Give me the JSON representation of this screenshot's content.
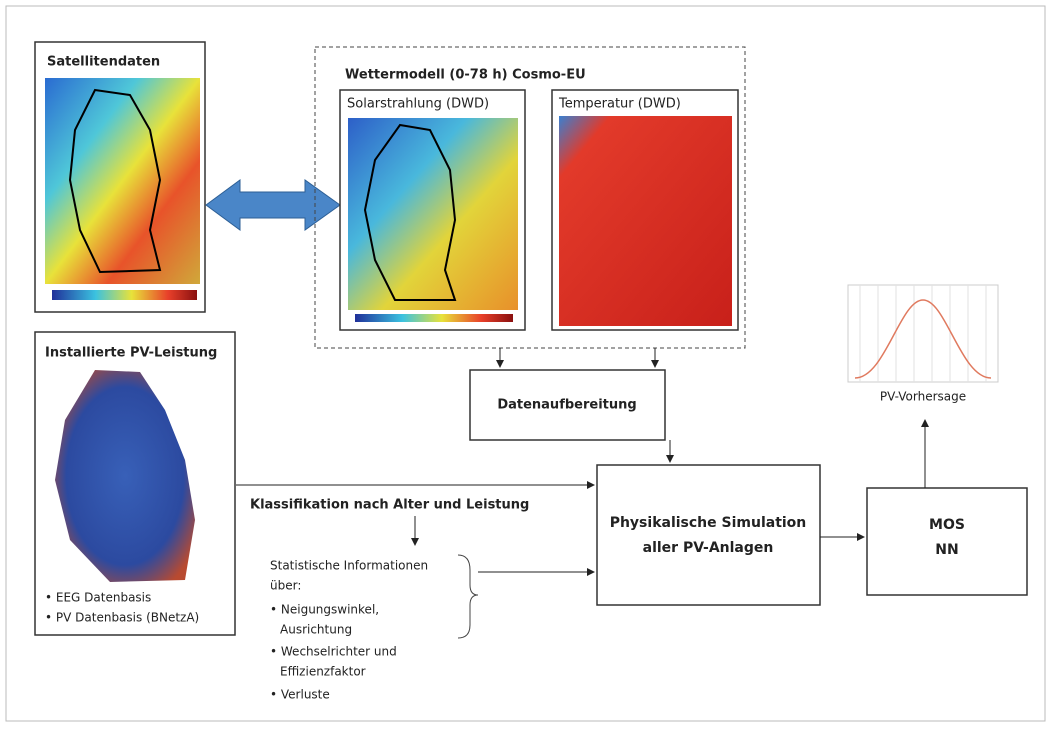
{
  "satellite": {
    "title": "Satellitendaten"
  },
  "weather_model": {
    "title": "Wettermodell (0-78 h) Cosmo-EU",
    "solar": "Solarstrahlung (DWD)",
    "temperature": "Temperatur (DWD)"
  },
  "installed": {
    "title": "Installierte PV-Leistung",
    "bullets": [
      "• EEG Datenbasis",
      "• PV Datenbasis (BNetzA)"
    ]
  },
  "preprocessing": "Datenaufbereitung",
  "classification": "Klassifikation nach Alter und Leistung",
  "statistics": [
    "Statistische Informationen",
    "über:",
    "• Neigungswinkel,",
    "Ausrichtung",
    "• Wechselrichter und",
    "Effizienzfaktor",
    "• Verluste"
  ],
  "simulation": [
    "Physikalische Simulation",
    "aller PV-Anlagen"
  ],
  "mos": [
    "MOS",
    "NN"
  ],
  "forecast": "PV-Vorhersage"
}
